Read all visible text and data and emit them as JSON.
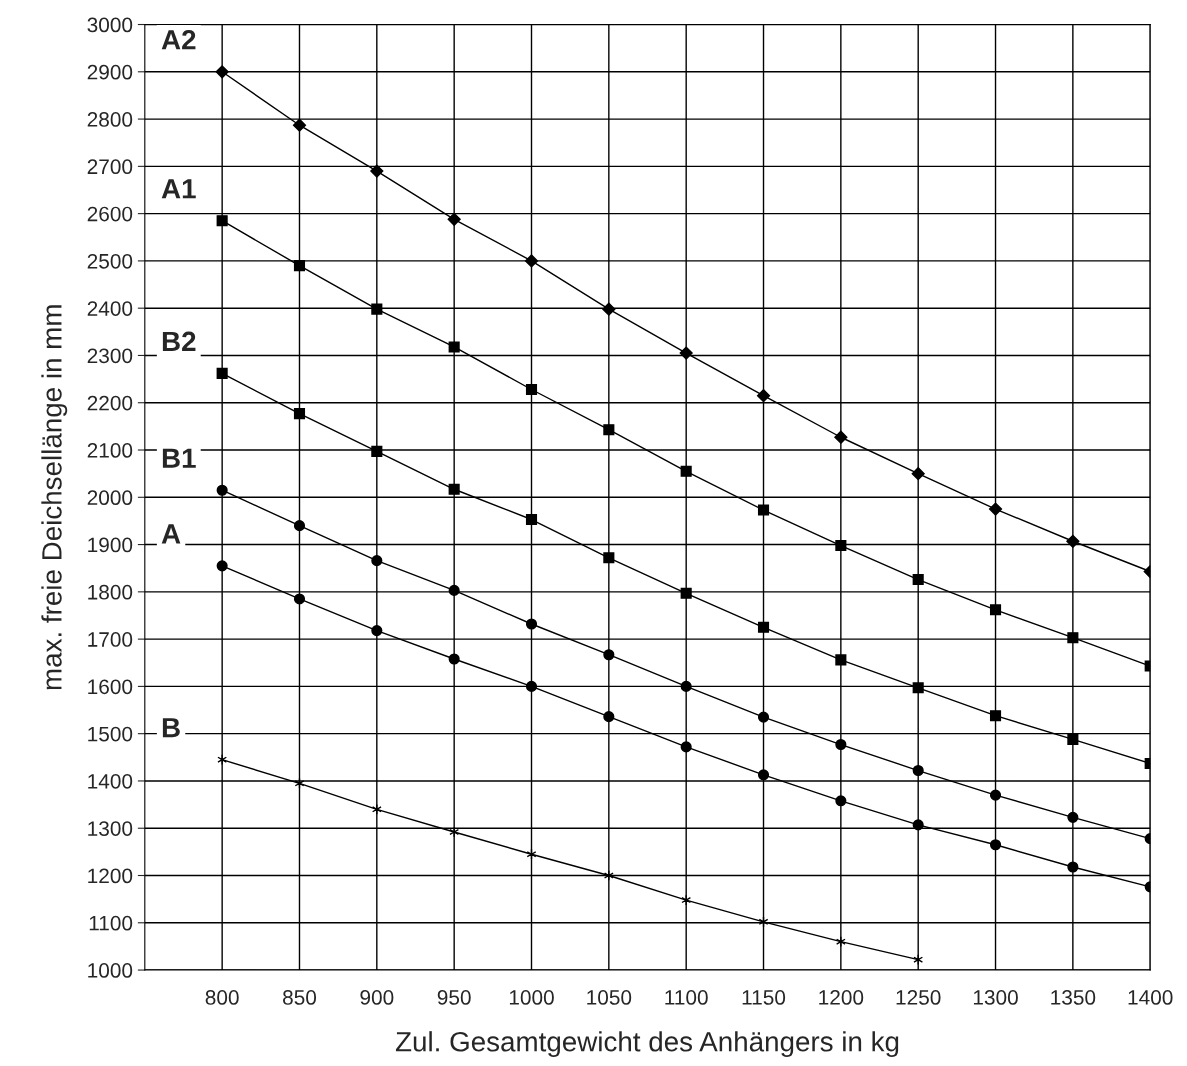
{
  "chart_data": {
    "type": "line",
    "xlabel": "Zul. Gesamtgewicht des Anhängers in kg",
    "ylabel": "max. freie Deichsellänge in mm",
    "x": [
      800,
      850,
      900,
      950,
      1000,
      1050,
      1100,
      1150,
      1200,
      1250,
      1300,
      1350,
      1400
    ],
    "xlim": [
      750,
      1400
    ],
    "xticks": [
      800,
      850,
      900,
      950,
      1000,
      1050,
      1100,
      1150,
      1200,
      1250,
      1300,
      1350,
      1400
    ],
    "ylim": [
      1000,
      3000
    ],
    "yticks": [
      1000,
      1100,
      1200,
      1300,
      1400,
      1500,
      1600,
      1700,
      1800,
      1900,
      2000,
      2100,
      2200,
      2300,
      2400,
      2500,
      2600,
      2700,
      2800,
      2900,
      3000
    ],
    "grid": true,
    "legend": false,
    "line_style": "solid",
    "series": [
      {
        "name": "A2",
        "color": "#000000",
        "marker": "diamond",
        "values": [
          2900,
          2787,
          2690,
          2588,
          2500,
          2398,
          2305,
          2215,
          2127,
          2050,
          1975,
          1907,
          1843
        ]
      },
      {
        "name": "A1",
        "color": "#000000",
        "marker": "square",
        "values": [
          2585,
          2490,
          2398,
          2318,
          2228,
          2143,
          2055,
          1973,
          1898,
          1826,
          1762,
          1703,
          1643
        ]
      },
      {
        "name": "B2",
        "color": "#000000",
        "marker": "square",
        "values": [
          2262,
          2177,
          2097,
          2017,
          1953,
          1872,
          1797,
          1725,
          1656,
          1597,
          1538,
          1488,
          1437
        ]
      },
      {
        "name": "B1",
        "color": "#000000",
        "marker": "circle",
        "values": [
          2015,
          1940,
          1866,
          1803,
          1732,
          1667,
          1600,
          1535,
          1477,
          1422,
          1370,
          1323,
          1278
        ]
      },
      {
        "name": "A",
        "color": "#000000",
        "marker": "circle",
        "values": [
          1855,
          1785,
          1718,
          1658,
          1600,
          1536,
          1472,
          1413,
          1358,
          1307,
          1265,
          1218,
          1176
        ]
      },
      {
        "name": "B",
        "color": "#000000",
        "marker": "cross",
        "values": [
          1445,
          1395,
          1340,
          1292,
          1245,
          1200,
          1148,
          1102,
          1060,
          1022,
          null,
          null,
          null
        ]
      }
    ]
  }
}
